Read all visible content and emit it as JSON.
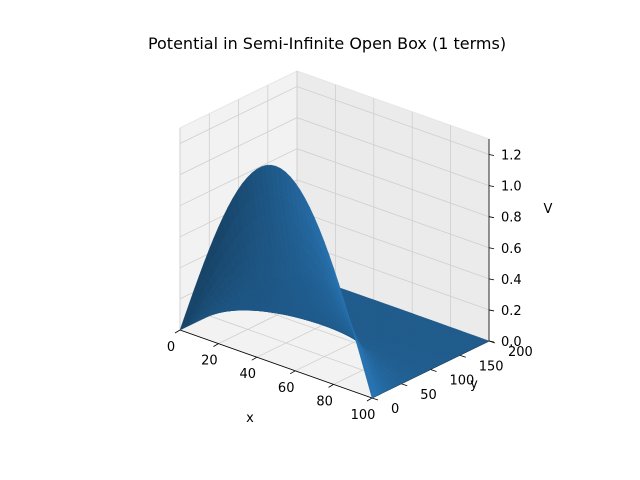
{
  "chart_data": {
    "type": "surface3d",
    "title": "Potential in Semi-Infinite Open Box (1 terms)",
    "xlabel": "x",
    "ylabel": "y",
    "zlabel": "V",
    "x_ticks": [
      "0",
      "20",
      "40",
      "60",
      "80",
      "100"
    ],
    "y_ticks": [
      "0",
      "50",
      "100",
      "150",
      "200"
    ],
    "z_ticks": [
      "0.0",
      "0.2",
      "0.4",
      "0.6",
      "0.8",
      "1.0",
      "1.2"
    ],
    "xlim": [
      0,
      100
    ],
    "ylim": [
      0,
      200
    ],
    "zlim": [
      0,
      1.3
    ],
    "surface": {
      "function": "1.273 * sin(pi*x/100) * exp(-pi*y/100)",
      "peak_value": 1.273,
      "x_range": [
        0,
        100
      ],
      "y_range": [
        0,
        200
      ]
    },
    "color": "#1f5b8c",
    "grid": true
  }
}
